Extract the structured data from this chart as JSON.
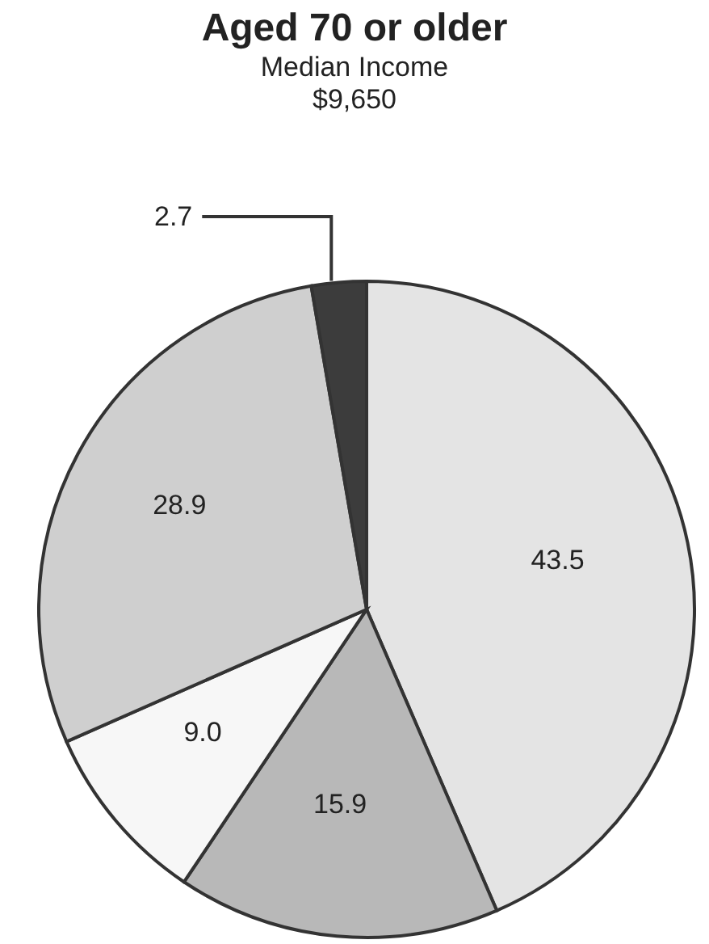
{
  "chart_data": {
    "type": "pie",
    "title": "Aged 70 or older",
    "subtitle": "Median Income",
    "annotations": [
      "$9,650"
    ],
    "categories": [
      null,
      null,
      null,
      null,
      null
    ],
    "values": [
      43.5,
      15.9,
      9.0,
      28.9,
      2.7
    ],
    "value_labels": [
      "43.5",
      "15.9",
      "9.0",
      "28.9",
      "2.7"
    ],
    "colors": [
      "#e4e4e4",
      "#b8b8b8",
      "#f7f7f7",
      "#cfcfcf",
      "#3c3c3c"
    ]
  }
}
